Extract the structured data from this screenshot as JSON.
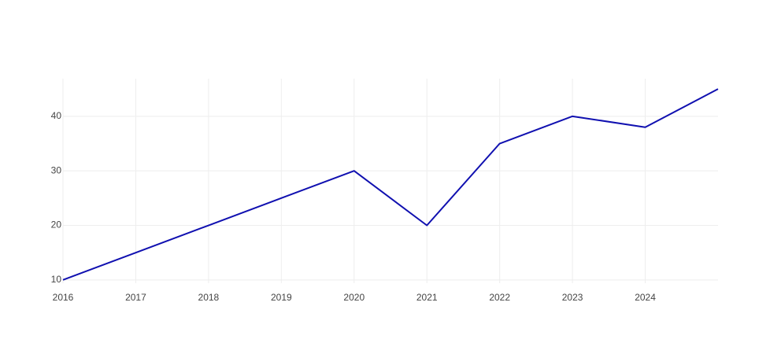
{
  "chart_data": {
    "type": "line",
    "x": [
      2016,
      2017,
      2018,
      2019,
      2020,
      2021,
      2022,
      2023,
      2024,
      2025
    ],
    "series": [
      {
        "color": "#1010b0",
        "values": [
          10,
          15,
          20,
          25,
          30,
          20,
          35,
          40,
          38,
          45
        ]
      }
    ],
    "xlim": [
      2016,
      2025
    ],
    "xticks": [
      2016,
      2017,
      2018,
      2019,
      2020,
      2021,
      2022,
      2023,
      2024
    ],
    "ylim": [
      9.4,
      46.9
    ],
    "yticks": [
      10,
      20,
      30,
      40
    ],
    "grid": true
  }
}
